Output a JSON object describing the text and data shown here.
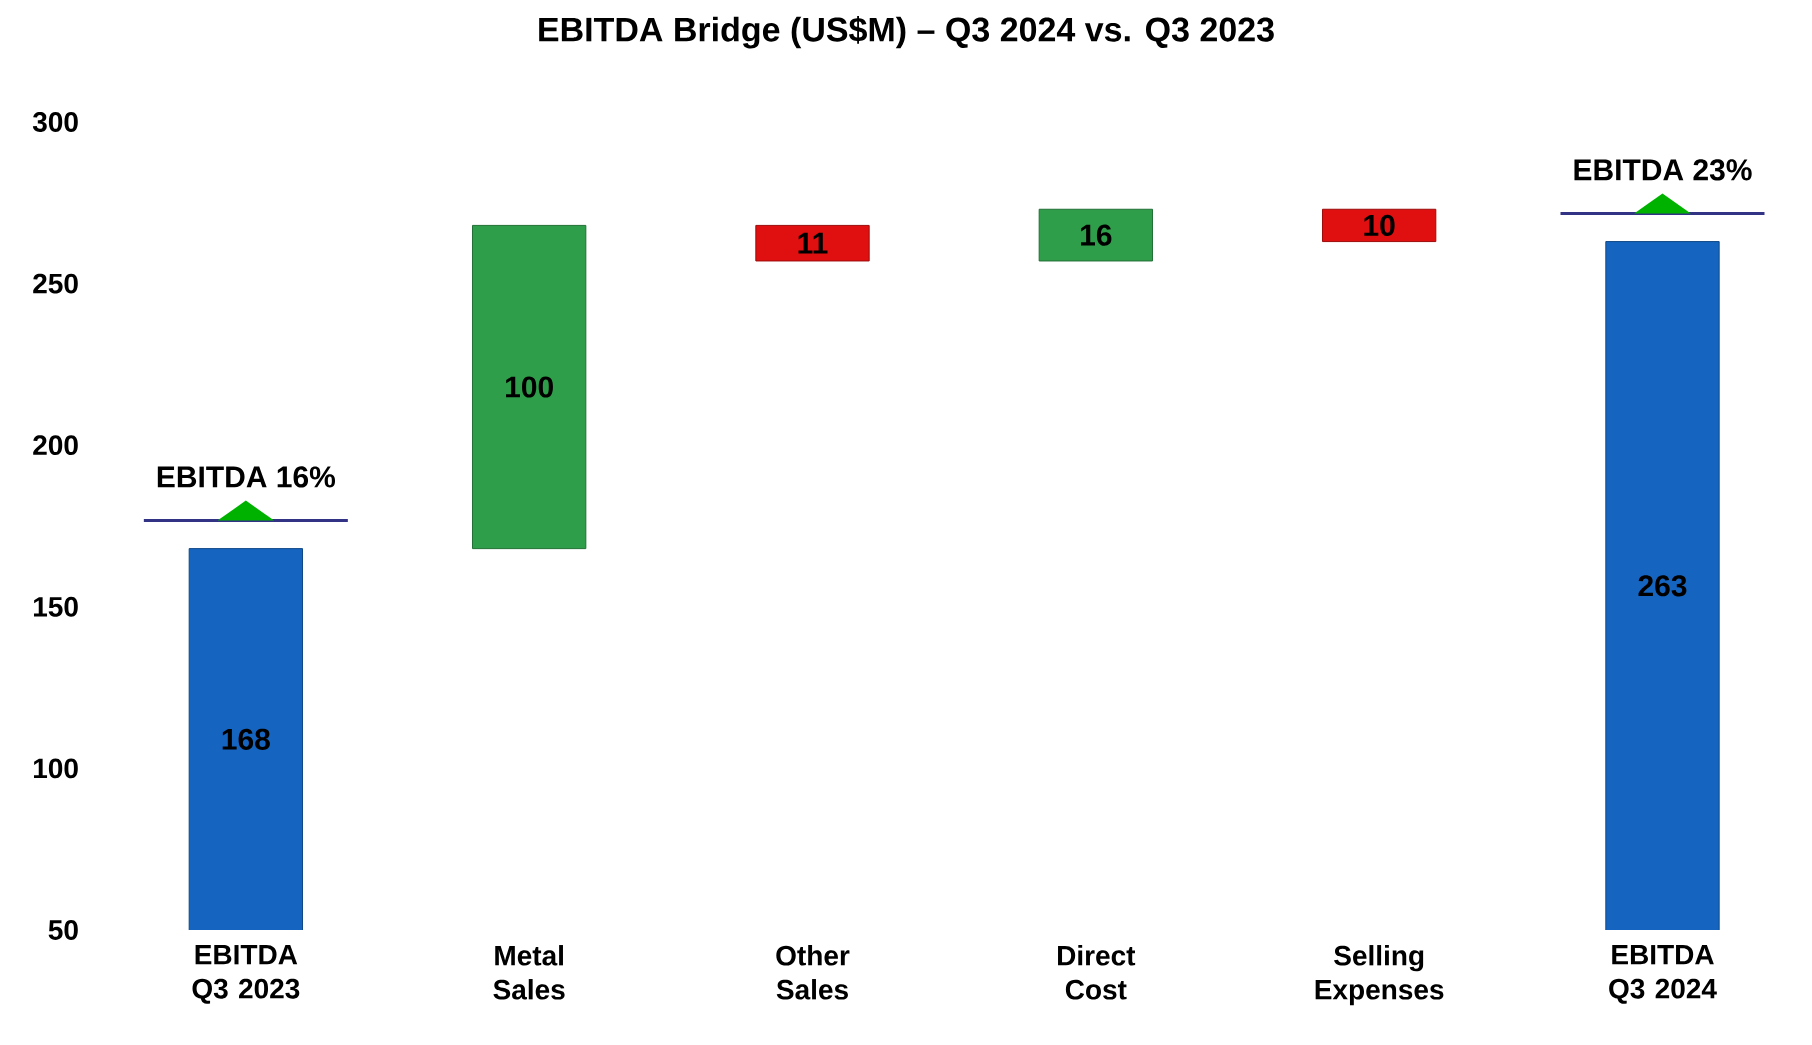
{
  "chart_data": {
    "type": "bar",
    "title": "EBITDA Bridge (US$M) – Q3 2024 vs. Q3 2023",
    "categories": [
      "EBITDA Q3 2023",
      "Metal Sales",
      "Other Sales",
      "Direct Cost",
      "Selling Expenses",
      "EBITDA Q3 2024"
    ],
    "values": [
      168,
      100,
      -11,
      16,
      -10,
      263
    ],
    "base": [
      0,
      168,
      268,
      257,
      273,
      0
    ],
    "colors": [
      "#1565c0",
      "#2e9e4a",
      "#e01010",
      "#2e9e4a",
      "#e01010",
      "#1565c0"
    ],
    "value_labels": [
      "168",
      "100",
      "11",
      "16",
      "10",
      "263"
    ],
    "ylim": [
      50,
      300
    ],
    "yticks": [
      50,
      100,
      150,
      200,
      250,
      300
    ],
    "annotations": [
      "EBITDA 16%",
      "EBITDA 23%"
    ]
  }
}
